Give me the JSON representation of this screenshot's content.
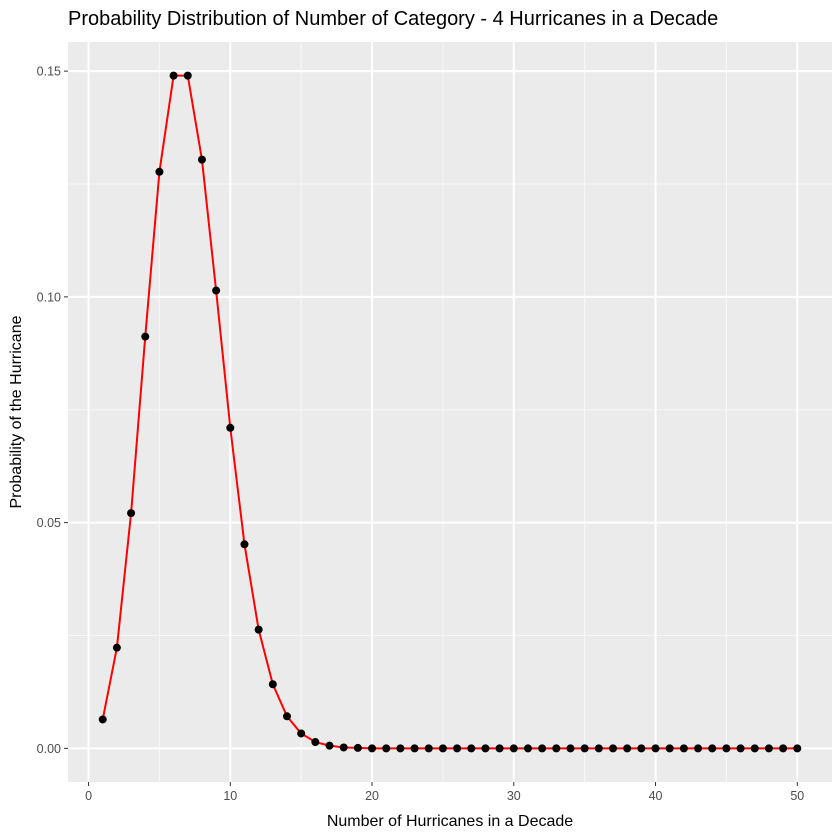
{
  "chart_data": {
    "type": "line",
    "title": "Probability Distribution of Number of Category - 4 Hurricanes in a Decade",
    "xlabel": "Number of Hurricanes in a Decade",
    "ylabel": "Probability of the Hurricane",
    "xlim": [
      -1.45,
      52.45
    ],
    "ylim": [
      -0.00745,
      0.15645
    ],
    "x_ticks": [
      0,
      10,
      20,
      30,
      40,
      50
    ],
    "x_tick_labels": [
      "0",
      "10",
      "20",
      "30",
      "40",
      "50"
    ],
    "y_ticks": [
      0,
      0.05,
      0.1,
      0.15
    ],
    "y_tick_labels": [
      "0.00",
      "0.05",
      "0.10",
      "0.15"
    ],
    "grid": true,
    "legend": "none",
    "colors": {
      "panel_bg": "#ebebeb",
      "grid_major": "#ffffff",
      "grid_minor": "#f7f7f7",
      "line": "#ff0000",
      "points": "#000000",
      "ticks": "#333333",
      "tick_text": "#4d4d4d"
    },
    "series": [
      {
        "x": [
          1,
          2,
          3,
          4,
          5,
          6,
          7,
          8,
          9,
          10,
          11,
          12,
          13,
          14,
          15,
          16,
          17,
          18,
          19,
          20,
          21,
          22,
          23,
          24,
          25,
          26,
          27,
          28,
          29,
          30,
          31,
          32,
          33,
          34,
          35,
          36,
          37,
          38,
          39,
          40,
          41,
          42,
          43,
          44,
          45,
          46,
          47,
          48,
          49,
          50
        ],
        "values": [
          0.0064,
          0.0223,
          0.0521,
          0.0912,
          0.1277,
          0.149,
          0.149,
          0.1304,
          0.1014,
          0.071,
          0.0452,
          0.0263,
          0.0142,
          0.0071,
          0.0033,
          0.0014,
          0.0006,
          0.0002,
          0.0001,
          0.0,
          0.0,
          0.0,
          0.0,
          0.0,
          0.0,
          0.0,
          0.0,
          0.0,
          0.0,
          0.0,
          0.0,
          0.0,
          0.0,
          0.0,
          0.0,
          0.0,
          0.0,
          0.0,
          0.0,
          0.0,
          0.0,
          0.0,
          0.0,
          0.0,
          0.0,
          0.0,
          0.0,
          0.0,
          0.0,
          0.0
        ]
      }
    ]
  }
}
